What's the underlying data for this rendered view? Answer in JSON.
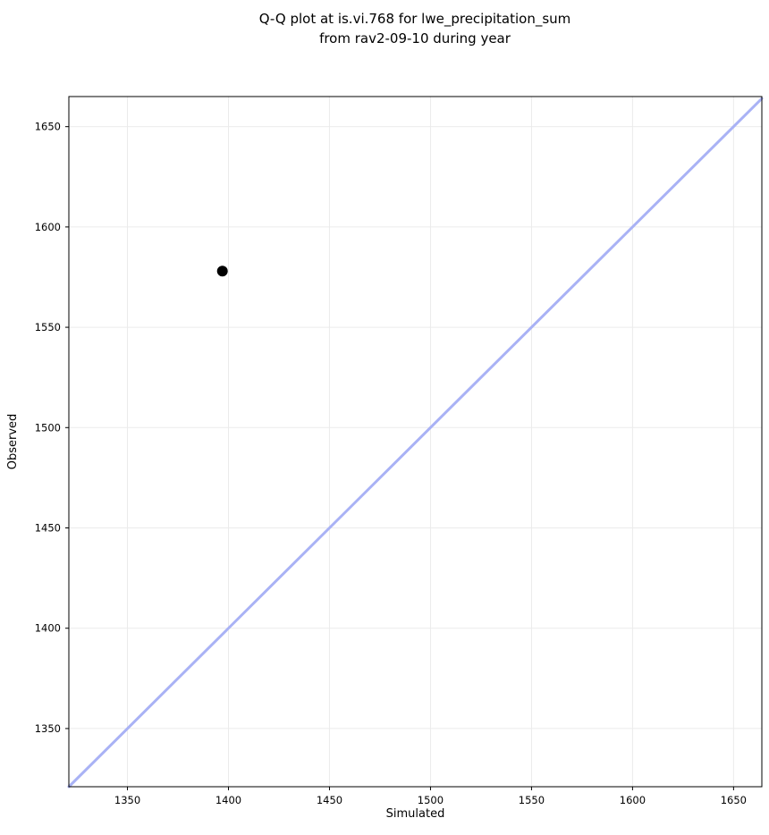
{
  "chart": {
    "title_lines": [
      "Q-Q plot at is.vi.768 for lwe_precipitation_sum",
      "from rav2-09-10 during year"
    ]
  },
  "chart_data": {
    "type": "scatter",
    "title": "Q-Q plot at is.vi.768 for lwe_precipitation_sum\nfrom rav2-09-10 during year",
    "xlabel": "Simulated",
    "ylabel": "Observed",
    "xlim": [
      1321,
      1664
    ],
    "ylim": [
      1321,
      1665
    ],
    "xticks": [
      1350,
      1400,
      1450,
      1500,
      1550,
      1600,
      1650
    ],
    "yticks": [
      1350,
      1400,
      1450,
      1500,
      1550,
      1600,
      1650
    ],
    "grid": true,
    "grid_color": "#ebebeb",
    "spine_color": "#000000",
    "identity_line": {
      "x": [
        1321,
        1664
      ],
      "y": [
        1321,
        1664
      ],
      "color": "#a9b2f5",
      "width": 3
    },
    "points": [
      {
        "x": 1397,
        "y": 1578
      }
    ],
    "point_color": "#000000",
    "point_radius": 6,
    "legend": null
  }
}
